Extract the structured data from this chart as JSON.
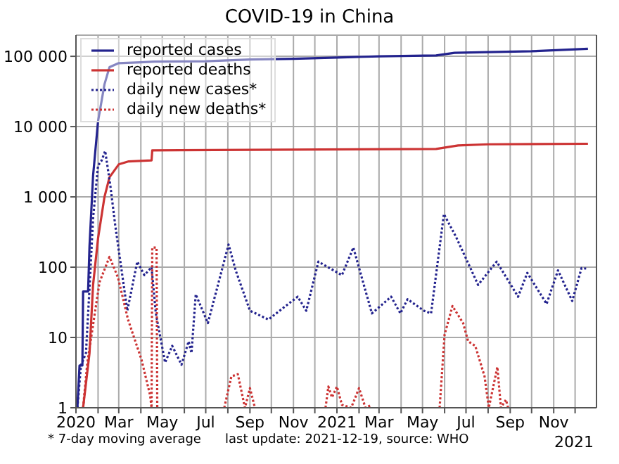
{
  "chart_data": {
    "type": "line",
    "title": "COVID-19 in China",
    "xlim": [
      "2020-01-01",
      "2021-12-31"
    ],
    "xticks": [
      {
        "value": "2020-01-01",
        "label": "2020"
      },
      {
        "value": "2020-02-01",
        "label": null
      },
      {
        "value": "2020-03-01",
        "label": "Mar"
      },
      {
        "value": "2020-04-01",
        "label": null
      },
      {
        "value": "2020-05-01",
        "label": "May"
      },
      {
        "value": "2020-06-01",
        "label": null
      },
      {
        "value": "2020-07-01",
        "label": "Jul"
      },
      {
        "value": "2020-08-01",
        "label": null
      },
      {
        "value": "2020-09-01",
        "label": "Sep"
      },
      {
        "value": "2020-10-01",
        "label": null
      },
      {
        "value": "2020-11-01",
        "label": "Nov"
      },
      {
        "value": "2020-12-01",
        "label": null
      },
      {
        "value": "2021-01-01",
        "label": "2021"
      },
      {
        "value": "2021-02-01",
        "label": null
      },
      {
        "value": "2021-03-01",
        "label": "Mar"
      },
      {
        "value": "2021-04-01",
        "label": null
      },
      {
        "value": "2021-05-01",
        "label": "May"
      },
      {
        "value": "2021-06-01",
        "label": null
      },
      {
        "value": "2021-07-01",
        "label": "Jul"
      },
      {
        "value": "2021-08-01",
        "label": null
      },
      {
        "value": "2021-09-01",
        "label": "Sep"
      },
      {
        "value": "2021-10-01",
        "label": null
      },
      {
        "value": "2021-11-01",
        "label": "Nov"
      },
      {
        "value": "2021-12-01",
        "label": null
      }
    ],
    "ylim": [
      1,
      200000
    ],
    "yticks": [
      1,
      10,
      100,
      {
        "value": 1000,
        "label": "1 000"
      },
      {
        "value": 10000,
        "label": "10 000"
      },
      {
        "value": 100000,
        "label": "100 000"
      }
    ],
    "log": "y",
    "grid": true,
    "legend": "top left",
    "marker": "none",
    "annotations": [
      "* 7-day moving average",
      "last update: 2021-12-19, source: WHO",
      "2021"
    ],
    "series": [
      {
        "name": "reported cases",
        "color": "#23238e",
        "line_style": "solid",
        "x": [
          "2020-01-03",
          "2020-01-06",
          "2020-01-10",
          "2020-01-11",
          "2020-01-18",
          "2020-01-20",
          "2020-01-25",
          "2020-02-01",
          "2020-02-10",
          "2020-02-17",
          "2020-03-01",
          "2020-04-01",
          "2020-04-20",
          "2020-07-01",
          "2020-09-01",
          "2020-11-01",
          "2021-01-01",
          "2021-03-01",
          "2021-05-20",
          "2021-06-15",
          "2021-08-01",
          "2021-10-01",
          "2021-12-19"
        ],
        "values": [
          1,
          4,
          4,
          45,
          45,
          200,
          2000,
          12000,
          40000,
          70000,
          80000,
          82000,
          84000,
          85000,
          90000,
          92000,
          96000,
          100000,
          103000,
          112000,
          115000,
          118000,
          128000
        ]
      },
      {
        "name": "reported deaths",
        "color": "#cc3333",
        "line_style": "solid",
        "x": [
          "2020-01-11",
          "2020-01-20",
          "2020-01-25",
          "2020-02-01",
          "2020-02-10",
          "2020-02-17",
          "2020-03-01",
          "2020-03-15",
          "2020-04-16",
          "2020-04-17",
          "2021-05-20",
          "2021-06-20",
          "2021-08-01",
          "2021-12-19"
        ],
        "values": [
          1,
          6,
          56,
          259,
          1000,
          1900,
          2900,
          3200,
          3300,
          4600,
          4800,
          5400,
          5600,
          5700
        ]
      },
      {
        "name": "daily new cases*",
        "color": "#23238e",
        "line_style": "dotted",
        "x": [
          "2020-01-03",
          "2020-01-08",
          "2020-01-15",
          "2020-01-20",
          "2020-01-25",
          "2020-02-01",
          "2020-02-06",
          "2020-02-11",
          "2020-02-18",
          "2020-02-25",
          "2020-03-13",
          "2020-03-27",
          "2020-04-06",
          "2020-04-16",
          "2020-04-22",
          "2020-05-05",
          "2020-05-15",
          "2020-05-28",
          "2020-06-07",
          "2020-06-11",
          "2020-06-17",
          "2020-07-04",
          "2020-08-02",
          "2020-08-12",
          "2020-09-01",
          "2020-09-27",
          "2020-10-21",
          "2020-11-07",
          "2020-11-19",
          "2020-12-06",
          "2021-01-08",
          "2021-01-24",
          "2021-02-19",
          "2021-03-18",
          "2021-03-31",
          "2021-04-10",
          "2021-05-03",
          "2021-05-13",
          "2021-05-31",
          "2021-06-17",
          "2021-07-18",
          "2021-08-13",
          "2021-09-12",
          "2021-09-25",
          "2021-10-22",
          "2021-11-07",
          "2021-11-27",
          "2021-12-10",
          "2021-12-19"
        ],
        "values": [
          1,
          4,
          6,
          50,
          500,
          2800,
          3300,
          4500,
          1500,
          400,
          24,
          120,
          77,
          100,
          22,
          4.4,
          7.6,
          4.1,
          8.8,
          6,
          41,
          16,
          210,
          90,
          24,
          18,
          28,
          38,
          24,
          120,
          77,
          190,
          22,
          38,
          22,
          35,
          24,
          22,
          570,
          270,
          56,
          120,
          38,
          83,
          30,
          90,
          33,
          97,
          95
        ]
      },
      {
        "name": "daily new deaths*",
        "color": "#cc3333",
        "line_style": "dotted",
        "x": [
          "2020-01-11",
          "2020-01-17",
          "2020-02-03",
          "2020-02-17",
          "2020-02-29",
          "2020-03-14",
          "2020-04-02",
          "2020-04-14",
          "2020-04-16",
          "2020-04-17",
          "2020-04-23",
          "2020-04-24",
          "2020-05-01",
          "2020-07-27",
          "2020-08-06",
          "2020-08-15",
          "2020-08-25",
          "2020-09-01",
          "2020-09-08",
          "2020-10-01",
          "2020-12-16",
          "2020-12-20",
          "2020-12-25",
          "2021-01-01",
          "2021-01-08",
          "2021-01-21",
          "2021-02-01",
          "2021-02-10",
          "2021-02-19",
          "2021-03-01",
          "2021-05-25",
          "2021-06-01",
          "2021-06-12",
          "2021-06-27",
          "2021-07-04",
          "2021-07-14",
          "2021-07-27",
          "2021-08-02",
          "2021-08-14",
          "2021-08-19",
          "2021-08-26",
          "2021-08-29"
        ],
        "values": [
          1,
          4.4,
          61,
          140,
          71,
          18,
          4.8,
          1.5,
          1,
          190,
          190,
          1,
          null,
          1,
          2.8,
          3,
          1,
          1.9,
          1,
          null,
          1,
          2,
          1.4,
          2,
          1.1,
          1,
          1.9,
          1,
          1.1,
          null,
          1,
          11,
          28,
          16,
          8.8,
          7.6,
          2.8,
          1,
          3.8,
          1,
          1.3,
          1
        ]
      }
    ]
  }
}
